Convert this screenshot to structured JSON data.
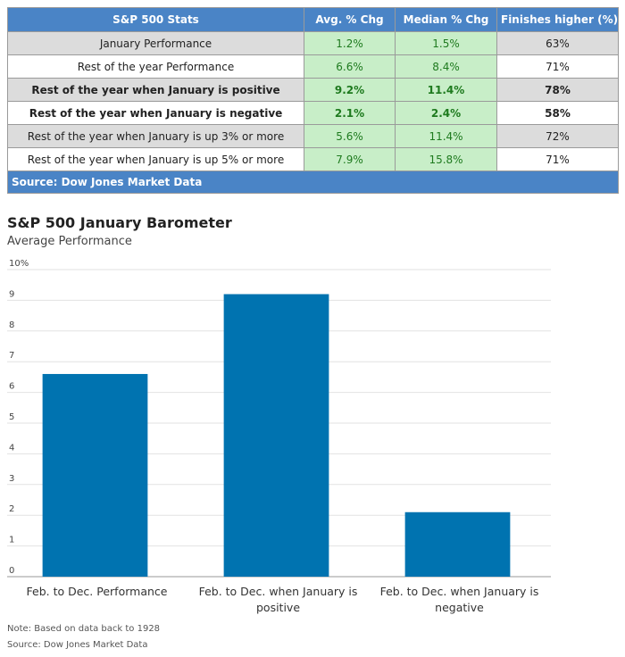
{
  "table": {
    "headers": [
      "S&P 500 Stats",
      "Avg. % Chg",
      "Median % Chg",
      "Finishes higher (%)"
    ],
    "rows": [
      {
        "label": "January Performance",
        "avg": "1.2%",
        "median": "1.5%",
        "higher": "63%"
      },
      {
        "label": "Rest of the year Performance",
        "avg": "6.6%",
        "median": "8.4%",
        "higher": "71%"
      },
      {
        "label": "Rest of the year when January is positive",
        "avg": "9.2%",
        "median": "11.4%",
        "higher": "78%"
      },
      {
        "label": "Rest of the year when January is negative",
        "avg": "2.1%",
        "median": "2.4%",
        "higher": "58%"
      },
      {
        "label": "Rest of the year when January is up 3% or more",
        "avg": "5.6%",
        "median": "11.4%",
        "higher": "72%"
      },
      {
        "label": "Rest of the year when January is up 5% or more",
        "avg": "7.9%",
        "median": "15.8%",
        "higher": "71%"
      }
    ],
    "source": "Source: Dow Jones Market Data",
    "colors": {
      "header": "#4a84c6",
      "green_cell": "#c8eec8",
      "green_text": "#1e7a1e",
      "gray_row": "#dcdcdc"
    }
  },
  "chart_data": {
    "type": "bar",
    "title": "S&P 500 January Barometer",
    "subtitle": "Average Performance",
    "categories": [
      [
        "Feb. to Dec. Performance"
      ],
      [
        "Feb. to Dec. when January is",
        "positive"
      ],
      [
        "Feb. to Dec. when January is",
        "negative"
      ]
    ],
    "values": [
      6.6,
      9.2,
      2.1
    ],
    "yticks": [
      "0",
      "1",
      "2",
      "3",
      "4",
      "5",
      "6",
      "7",
      "8",
      "9",
      "10%"
    ],
    "ylim": [
      0,
      10
    ],
    "grid": true,
    "bar_color": "#0073b0"
  },
  "notes": {
    "note": "Note: Based on data back to 1928",
    "source": "Source: Dow Jones Market Data"
  }
}
